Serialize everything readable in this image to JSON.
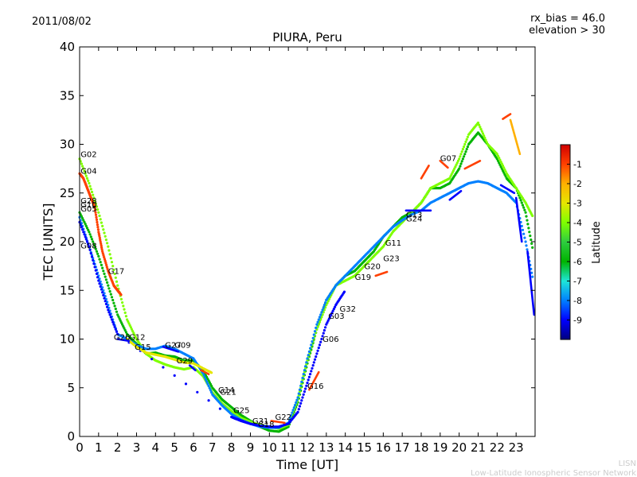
{
  "header": {
    "date": "2011/08/02",
    "rx_bias": "rx_bias = 46.0",
    "elevation": "elevation > 30"
  },
  "footer": {
    "line1": "LISN",
    "line2": "Low-Latitude Ionospheric Sensor Network"
  },
  "colors": {
    "scale": [
      "#00007f",
      "#0000ff",
      "#0080ff",
      "#1ee6d8",
      "#00b400",
      "#2ecc40",
      "#7fff00",
      "#e6e600",
      "#ffb000",
      "#ff4000",
      "#d00000"
    ]
  },
  "chart_data": {
    "type": "scatter",
    "title": "PIURA, Peru",
    "xlabel": "Time [UT]",
    "ylabel": "TEC [UNITS]",
    "xlim": [
      0,
      24
    ],
    "ylim": [
      0,
      40
    ],
    "xticks": [
      "0",
      "1",
      "2",
      "3",
      "4",
      "5",
      "6",
      "7",
      "8",
      "9",
      "10",
      "11",
      "12",
      "13",
      "14",
      "15",
      "16",
      "17",
      "18",
      "19",
      "20",
      "21",
      "22",
      "23"
    ],
    "yticks": [
      "0",
      "5",
      "10",
      "15",
      "20",
      "25",
      "30",
      "35",
      "40"
    ],
    "colorbar": {
      "label": "Latitude",
      "min": -10,
      "max": 0,
      "ticks": [
        "-1",
        "-2",
        "-3",
        "-4",
        "-5",
        "-6",
        "-7",
        "-8",
        "-9"
      ]
    },
    "series": [
      {
        "name": "green",
        "lat": -6,
        "x": [
          0,
          0.5,
          1,
          1.5,
          2,
          2.5,
          3,
          3.5,
          4,
          4.5,
          5,
          5.5,
          6,
          6.5,
          7,
          7.5,
          8,
          8.5,
          9,
          9.5,
          10,
          10.5,
          11,
          11.5,
          12,
          12.5,
          13,
          13.5,
          14,
          14.5,
          15,
          15.5,
          16,
          16.5,
          17,
          17.5,
          18,
          18.5,
          19,
          19.5,
          20,
          20.5,
          21,
          21.5,
          22,
          22.5,
          23,
          23.5,
          23.9
        ],
        "y": [
          23,
          21,
          18.5,
          15.5,
          12.5,
          10.5,
          9.5,
          8.5,
          8.6,
          8.3,
          8.2,
          7.8,
          7.8,
          6.8,
          5.0,
          3.8,
          3.0,
          2.2,
          1.6,
          1.0,
          0.6,
          0.5,
          1.0,
          3.5,
          7.5,
          11,
          14,
          15.5,
          16.5,
          17,
          18,
          19,
          20.5,
          21.5,
          22.5,
          23,
          24,
          25.5,
          25.5,
          26,
          27.5,
          30,
          31.2,
          30,
          28.5,
          26.5,
          25.5,
          23,
          19
        ]
      },
      {
        "name": "yellow",
        "lat": -4,
        "x": [
          0,
          0.5,
          1,
          1.5,
          2,
          2.5,
          3,
          3.5,
          4,
          4.5,
          5,
          5.5,
          6,
          6.5,
          7,
          7.5,
          8,
          8.5,
          9,
          9.5,
          10,
          10.5,
          11,
          11.5,
          12,
          12.5,
          13,
          13.5,
          14,
          14.5,
          15,
          15.5,
          16,
          16.5,
          17,
          17.5,
          18,
          18.5,
          19,
          19.5,
          20,
          20.5,
          21,
          21.5,
          22,
          22.5,
          23,
          23.5,
          23.9
        ],
        "y": [
          28.5,
          26,
          23,
          19.5,
          15.5,
          12,
          10,
          8.5,
          7.8,
          7.4,
          7.1,
          6.9,
          7.1,
          6.2,
          4.5,
          3.4,
          2.6,
          1.9,
          1.5,
          1.2,
          1.0,
          0.8,
          1.2,
          3.8,
          7.8,
          11,
          13.5,
          15.5,
          16,
          16.5,
          17.5,
          18.5,
          19.5,
          21,
          22,
          23,
          24,
          25.5,
          26,
          26.5,
          28.5,
          31,
          32.2,
          30,
          29,
          27,
          25.5,
          24,
          22.5
        ]
      },
      {
        "name": "cyan",
        "lat": -8,
        "x": [
          0,
          0.5,
          1,
          1.5,
          2,
          2.5,
          3,
          3.5,
          4,
          4.5,
          5,
          5.5,
          6,
          6.5,
          7,
          7.5,
          8,
          8.5,
          9,
          9.5,
          10,
          10.5,
          11,
          11.5,
          12,
          12.5,
          13,
          13.5,
          14,
          14.5,
          15,
          15.5,
          16,
          16.5,
          17,
          17.5,
          18,
          18.5,
          19,
          19.5,
          20,
          20.5,
          21,
          21.5,
          22,
          22.5,
          23,
          23.5,
          23.9
        ],
        "y": [
          22.5,
          19.5,
          16.5,
          13.5,
          10.5,
          10,
          9.4,
          9.0,
          9.0,
          9.3,
          9.0,
          8.5,
          8.0,
          6.5,
          4.3,
          3.2,
          2.3,
          1.7,
          1.3,
          1.0,
          0.9,
          0.9,
          1.4,
          4,
          8,
          11.5,
          14,
          15.5,
          16.5,
          17.5,
          18.5,
          19.5,
          20.5,
          21.5,
          22.2,
          22.8,
          23.2,
          24,
          24.5,
          25,
          25.5,
          26,
          26.2,
          26,
          25.5,
          25,
          24,
          20,
          16
        ]
      },
      {
        "name": "blue",
        "lat": -9,
        "x": [
          0,
          0.5,
          1,
          1.5,
          2,
          8,
          8.5,
          9,
          9.5,
          10,
          10.5,
          11,
          11.5,
          12,
          12.5,
          13,
          13.5,
          14
        ],
        "y": [
          22,
          19.5,
          16,
          13,
          10.5,
          2.0,
          1.6,
          1.3,
          1.1,
          1.0,
          1.0,
          1.3,
          2.5,
          5.5,
          8.5,
          11.5,
          13.5,
          15
        ]
      },
      {
        "name": "red",
        "lat": -1,
        "x": [
          0,
          0.2,
          0.4,
          0.6,
          0.8,
          1,
          1.2,
          1.5,
          1.8,
          2.0,
          2.2
        ],
        "y": [
          27,
          26.5,
          25.5,
          24.5,
          23.5,
          21,
          19,
          17,
          15.5,
          15,
          14.5
        ]
      },
      {
        "name": "orange",
        "lat": -3,
        "x": [
          2.5,
          3,
          3.5,
          4,
          4.5,
          5,
          5.5,
          6,
          6.5,
          7
        ],
        "y": [
          10,
          9.2,
          8.6,
          8.4,
          8.2,
          7.9,
          7.6,
          7.5,
          7.0,
          6.5
        ]
      }
    ],
    "segments": [
      {
        "lat": -1,
        "x": [
          12.1,
          12.6
        ],
        "y": [
          4.8,
          6.6
        ]
      },
      {
        "lat": -1,
        "x": [
          15.6,
          16.2
        ],
        "y": [
          16.5,
          16.9
        ]
      },
      {
        "lat": -1,
        "x": [
          18.0,
          18.4
        ],
        "y": [
          26.5,
          27.8
        ]
      },
      {
        "lat": -1,
        "x": [
          19.0,
          19.4
        ],
        "y": [
          28.3,
          27.6
        ]
      },
      {
        "lat": -1,
        "x": [
          20.3,
          21.1
        ],
        "y": [
          27.5,
          28.3
        ]
      },
      {
        "lat": -1,
        "x": [
          22.3,
          22.7
        ],
        "y": [
          32.6,
          33.1
        ]
      },
      {
        "lat": -2,
        "x": [
          22.7,
          23.2
        ],
        "y": [
          32.5,
          29
        ]
      },
      {
        "lat": -9,
        "x": [
          22.2,
          22.9
        ],
        "y": [
          25.8,
          25.0
        ]
      },
      {
        "lat": -9,
        "x": [
          23.0,
          23.3
        ],
        "y": [
          24.5,
          20
        ]
      },
      {
        "lat": -9,
        "x": [
          23.6,
          23.95
        ],
        "y": [
          19,
          12.5
        ]
      },
      {
        "lat": -9,
        "x": [
          19.5,
          20.1
        ],
        "y": [
          24.3,
          25.2
        ]
      },
      {
        "lat": -9,
        "x": [
          17.2,
          18.5
        ],
        "y": [
          23.2,
          23.2
        ]
      },
      {
        "lat": -9,
        "x": [
          2.0,
          2.6
        ],
        "y": [
          10.0,
          9.8
        ]
      },
      {
        "lat": -9,
        "x": [
          4.4,
          5.2
        ],
        "y": [
          9.2,
          8.7
        ]
      },
      {
        "lat": -9,
        "x": [
          5.8,
          6.1
        ],
        "y": [
          7.3,
          6.8
        ]
      },
      {
        "lat": -1,
        "x": [
          6.4,
          6.8
        ],
        "y": [
          6.8,
          6.4
        ]
      },
      {
        "lat": -1,
        "x": [
          10.1,
          10.8
        ],
        "y": [
          1.6,
          1.4
        ]
      },
      {
        "lat": -9,
        "x": [
          8.0,
          8.6
        ],
        "y": [
          2.0,
          1.6
        ]
      }
    ],
    "labels": [
      {
        "text": "G02",
        "x": 0.05,
        "y": 28.7
      },
      {
        "text": "G04",
        "x": 0.05,
        "y": 27.0
      },
      {
        "text": "G28",
        "x": 0.05,
        "y": 23.9
      },
      {
        "text": "G10",
        "x": 0.05,
        "y": 23.5
      },
      {
        "text": "G05",
        "x": 0.05,
        "y": 23.1
      },
      {
        "text": "G08",
        "x": 0.05,
        "y": 19.3
      },
      {
        "text": "G17",
        "x": 1.5,
        "y": 16.7
      },
      {
        "text": "G26",
        "x": 1.8,
        "y": 9.9
      },
      {
        "text": "G12",
        "x": 2.6,
        "y": 9.9
      },
      {
        "text": "G15",
        "x": 2.9,
        "y": 8.9
      },
      {
        "text": "G27",
        "x": 4.5,
        "y": 9.1
      },
      {
        "text": "G09",
        "x": 5.0,
        "y": 9.1
      },
      {
        "text": "G29",
        "x": 5.1,
        "y": 7.5
      },
      {
        "text": "G14",
        "x": 7.3,
        "y": 4.5
      },
      {
        "text": "G21",
        "x": 7.4,
        "y": 4.3
      },
      {
        "text": "G25",
        "x": 8.1,
        "y": 2.4
      },
      {
        "text": "G31",
        "x": 9.1,
        "y": 1.3
      },
      {
        "text": "G18",
        "x": 9.4,
        "y": 1.0
      },
      {
        "text": "G22",
        "x": 10.3,
        "y": 1.7
      },
      {
        "text": "G16",
        "x": 12.0,
        "y": 4.9
      },
      {
        "text": "G06",
        "x": 12.8,
        "y": 9.7
      },
      {
        "text": "G03",
        "x": 13.1,
        "y": 12.1
      },
      {
        "text": "G32",
        "x": 13.7,
        "y": 12.8
      },
      {
        "text": "G19",
        "x": 14.5,
        "y": 16.1
      },
      {
        "text": "G20",
        "x": 15.0,
        "y": 17.2
      },
      {
        "text": "G23",
        "x": 16.0,
        "y": 18.0
      },
      {
        "text": "G11",
        "x": 16.1,
        "y": 19.6
      },
      {
        "text": "G13",
        "x": 17.2,
        "y": 22.5
      },
      {
        "text": "G24",
        "x": 17.2,
        "y": 22.1
      },
      {
        "text": "G07",
        "x": 19.0,
        "y": 28.3
      }
    ]
  }
}
